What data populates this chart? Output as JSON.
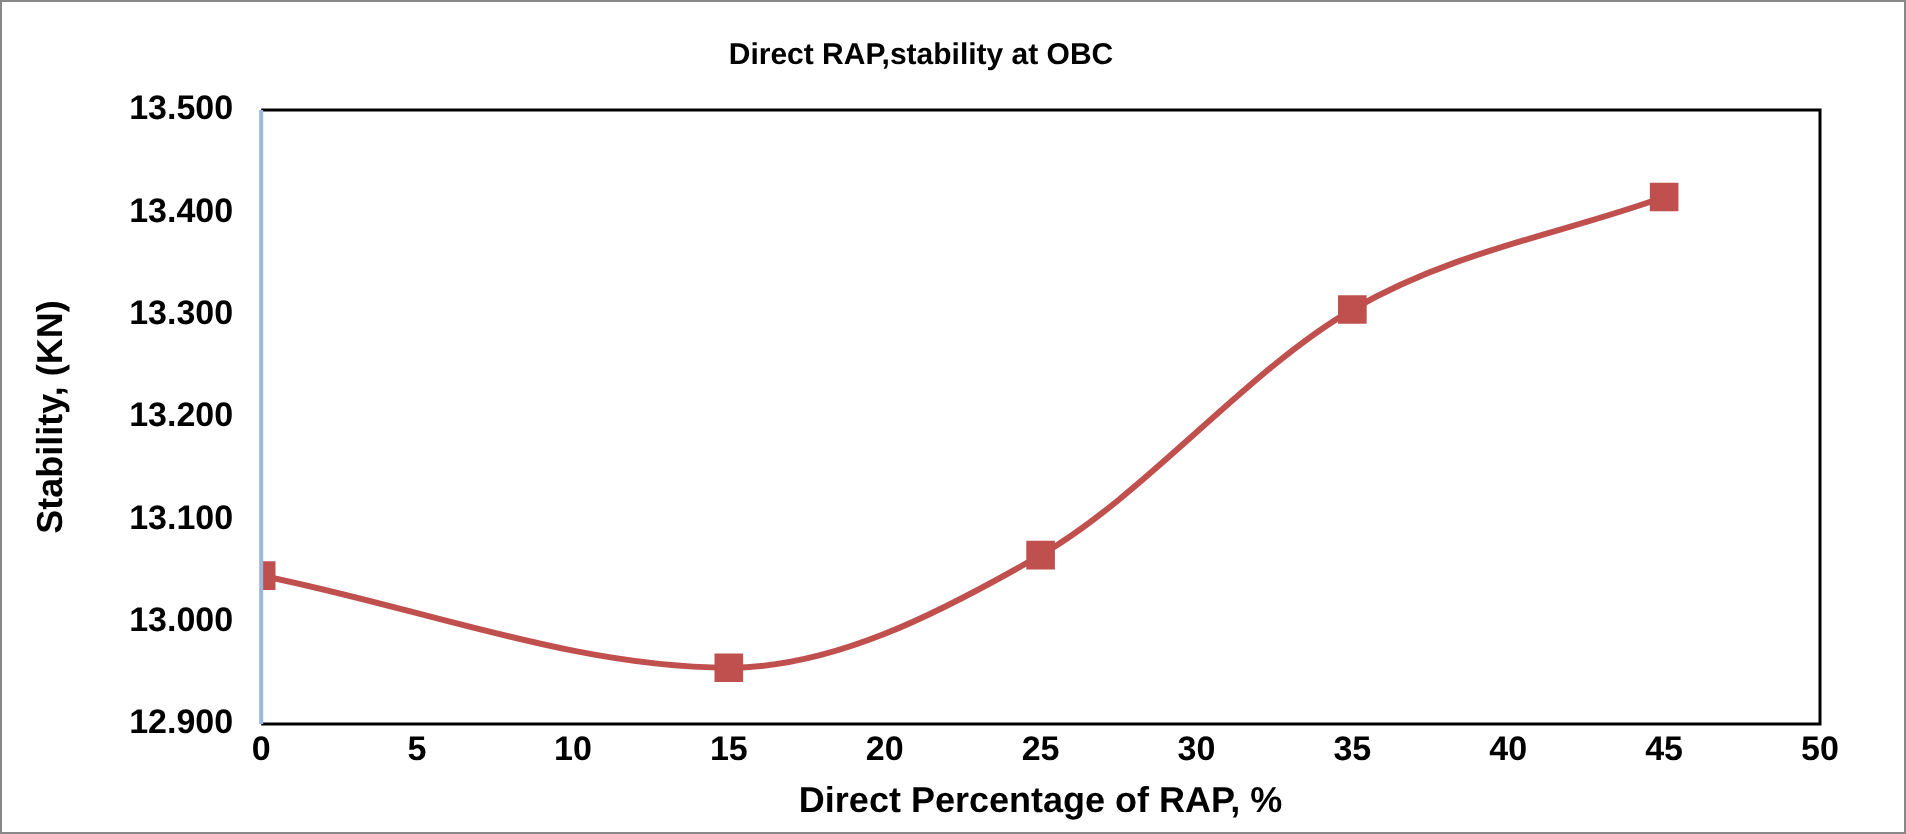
{
  "chart_data": {
    "type": "line",
    "title": "Direct RAP,stability at OBC",
    "xlabel": "Direct Percentage of RAP, %",
    "ylabel": "Stability, (KN)",
    "x": [
      0,
      15,
      25,
      35,
      45
    ],
    "series": [
      {
        "color": "#c0504d",
        "values": [
          13.045,
          12.955,
          13.065,
          13.305,
          13.415
        ]
      }
    ],
    "xlim": [
      0,
      50
    ],
    "xticks": [
      0,
      5,
      10,
      15,
      20,
      25,
      30,
      35,
      40,
      45,
      50
    ],
    "ylim": [
      12.9,
      13.5
    ],
    "yticks": [
      {
        "value": 12.9,
        "label": "12.900"
      },
      {
        "value": 13.0,
        "label": "13.000"
      },
      {
        "value": 13.1,
        "label": "13.100"
      },
      {
        "value": 13.2,
        "label": "13.200"
      },
      {
        "value": 13.3,
        "label": "13.300"
      },
      {
        "value": 13.4,
        "label": "13.400"
      },
      {
        "value": 13.5,
        "label": "13.500"
      }
    ],
    "grid": false,
    "legend": false,
    "marker": "square",
    "line_style": "solid"
  }
}
